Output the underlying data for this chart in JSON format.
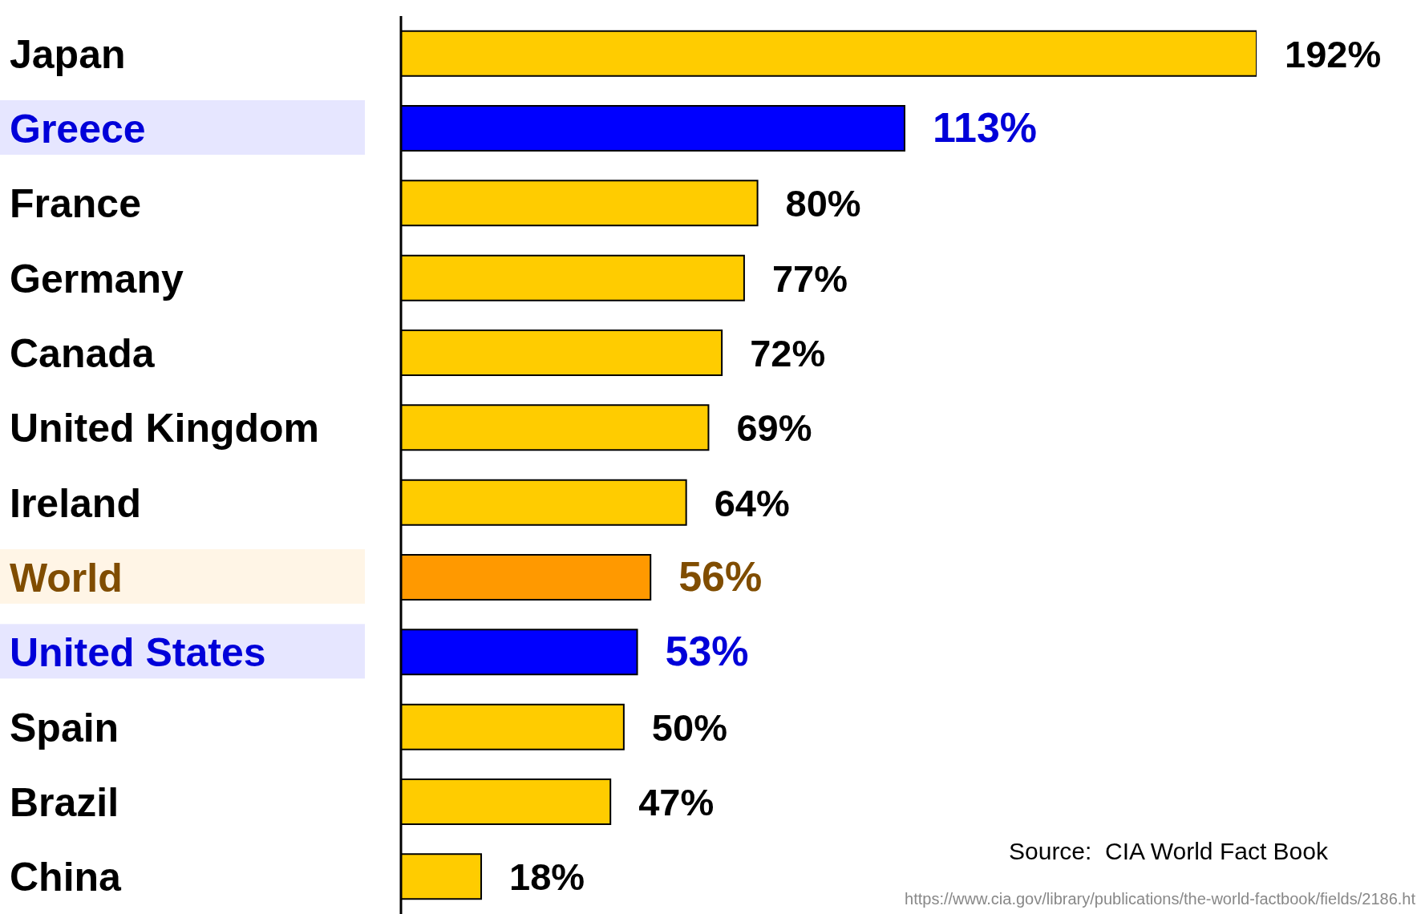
{
  "chart_data": {
    "type": "bar",
    "orientation": "horizontal",
    "categories": [
      "Japan",
      "Greece",
      "France",
      "Germany",
      "Canada",
      "United Kingdom",
      "Ireland",
      "World",
      "United States",
      "Spain",
      "Brazil",
      "China"
    ],
    "values": [
      192,
      113,
      80,
      77,
      72,
      69,
      64,
      56,
      53,
      50,
      47,
      18
    ],
    "colors": [
      "#ffcc00",
      "#0000ff",
      "#ffcc00",
      "#ffcc00",
      "#ffcc00",
      "#ffcc00",
      "#ffcc00",
      "#ff9900",
      "#0000ff",
      "#ffcc00",
      "#ffcc00",
      "#ffcc00"
    ],
    "value_labels": [
      "192%",
      "113%",
      "80%",
      "77%",
      "72%",
      "69%",
      "64%",
      "56%",
      "53%",
      "50%",
      "47%",
      "18%"
    ],
    "annotations": [
      "Source:  CIA World Fact Book",
      "https://www.cia.gov/library/publications/the-world-factbook/fields/2186.ht"
    ]
  }
}
